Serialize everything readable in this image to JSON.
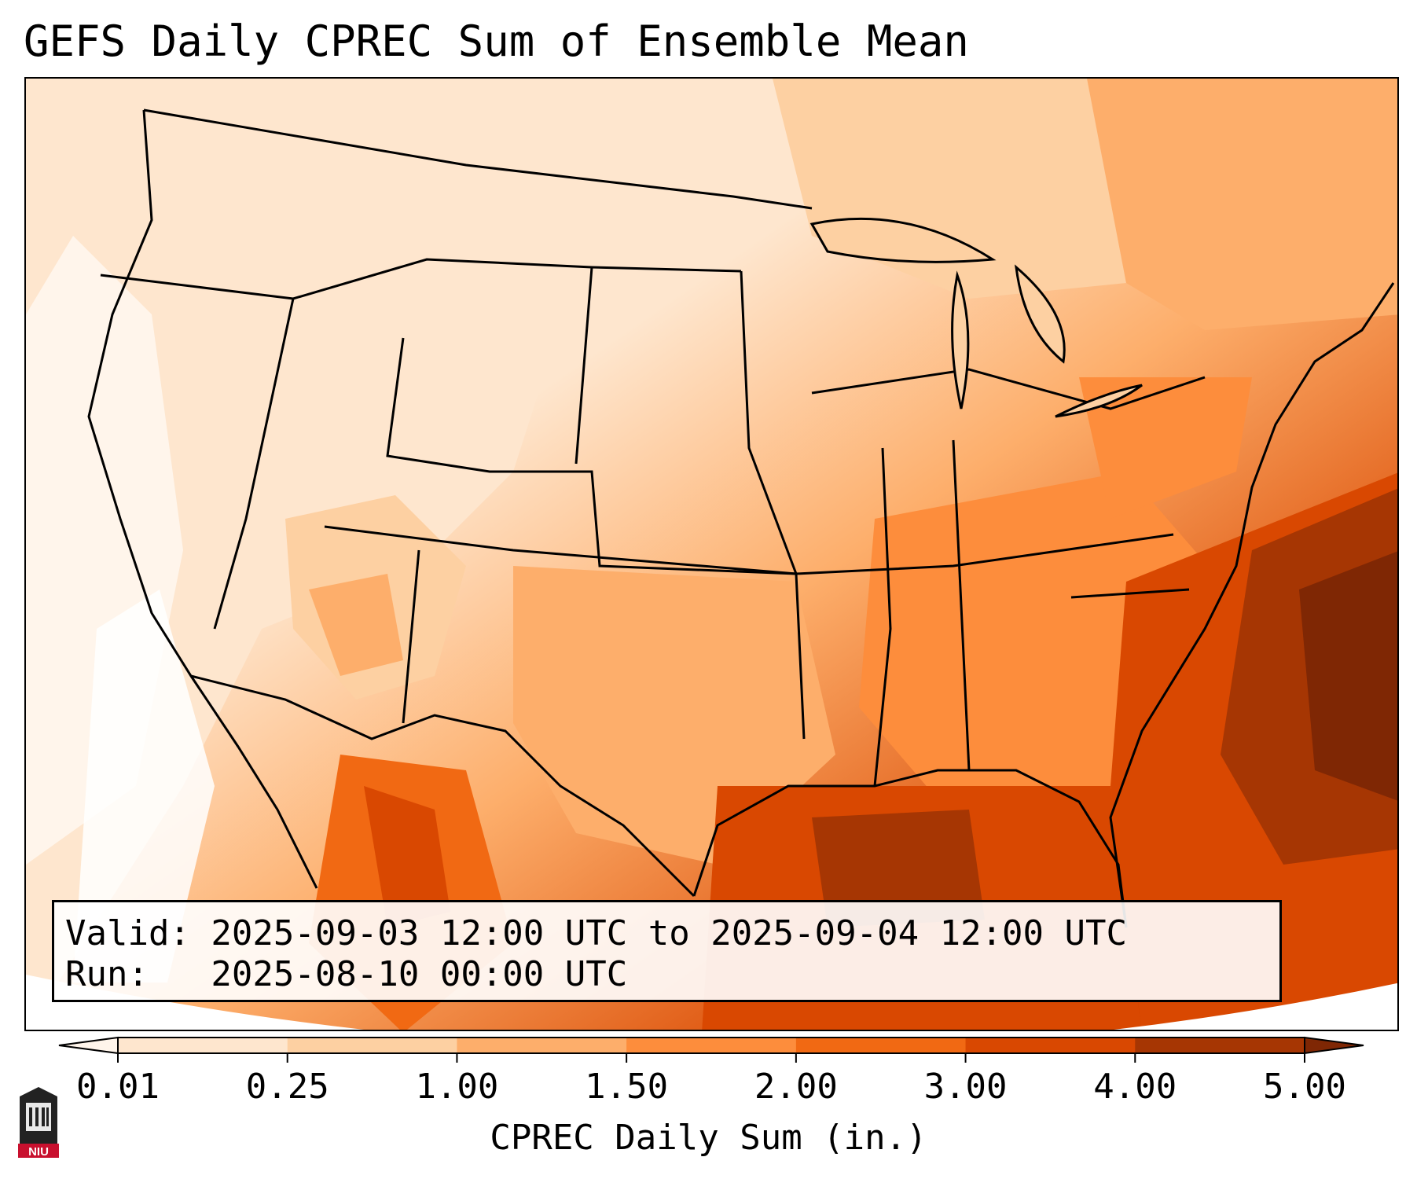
{
  "title": "GEFS Daily CPREC Sum of Ensemble Mean",
  "info": {
    "valid_line": "Valid: 2025-09-03 12:00 UTC to 2025-09-04 12:00 UTC",
    "run_line": "Run:   2025-08-10 00:00 UTC"
  },
  "colorbar": {
    "label": "CPREC Daily Sum (in.)",
    "ticks": [
      "0.01",
      "0.25",
      "1.00",
      "1.50",
      "2.00",
      "3.00",
      "4.00",
      "5.00"
    ],
    "colors": [
      "#fff5eb",
      "#fee6ce",
      "#fdd0a2",
      "#fdae6b",
      "#fd8d3c",
      "#f16913",
      "#d94801",
      "#a63603",
      "#7f2704"
    ],
    "extend": "both"
  },
  "logo": {
    "text": "NIU",
    "name": "Northern Illinois University logo"
  },
  "map": {
    "region": "Continental United States",
    "palette": [
      "#fff5eb",
      "#fee6ce",
      "#fdd0a2",
      "#fdae6b",
      "#fd8d3c",
      "#f16913",
      "#d94801",
      "#a63603",
      "#7f2704"
    ]
  }
}
